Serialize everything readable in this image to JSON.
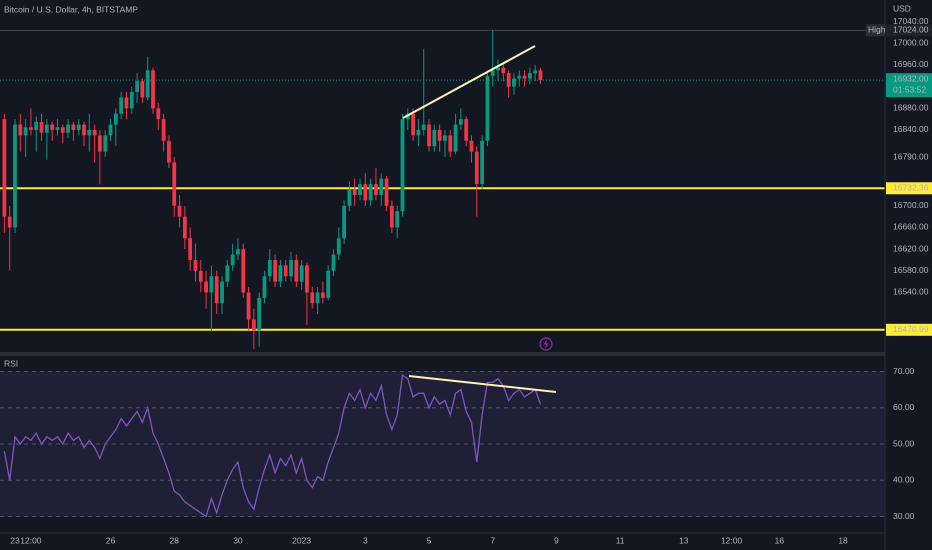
{
  "chart_data": {
    "type": "candlestick",
    "title": "Bitcoin / U.S. Dollar, 4h, BITSTAMP",
    "currency": "USD",
    "up_color": "#089981",
    "down_color": "#f23645",
    "grid": true,
    "xlim": [
      -11.3,
      655.6
    ],
    "xticks": [
      {
        "value": 0,
        "label": "23"
      },
      {
        "value": 12,
        "label": "12:00"
      },
      {
        "value": 72,
        "label": "26"
      },
      {
        "value": 120,
        "label": "28"
      },
      {
        "value": 168,
        "label": "30"
      },
      {
        "value": 216,
        "label": "2023"
      },
      {
        "value": 264,
        "label": "3"
      },
      {
        "value": 312,
        "label": "5"
      },
      {
        "value": 360,
        "label": "7"
      },
      {
        "value": 408,
        "label": "9"
      },
      {
        "value": 456,
        "label": "11"
      },
      {
        "value": 504,
        "label": "13"
      },
      {
        "value": 540,
        "label": "12:00"
      },
      {
        "value": 576,
        "label": "16"
      },
      {
        "value": 624,
        "label": "18"
      }
    ],
    "ylim": [
      16430,
      17080
    ],
    "yticks": [
      {
        "value": 17040,
        "label": "17040.00"
      },
      {
        "value": 17000,
        "label": "17000.00"
      },
      {
        "value": 16960,
        "label": "16960.00"
      },
      {
        "value": 16880,
        "label": "16880.00"
      },
      {
        "value": 16840,
        "label": "16840.00"
      },
      {
        "value": 16790,
        "label": "16790.00"
      },
      {
        "value": 16700,
        "label": "16700.00"
      },
      {
        "value": 16660,
        "label": "16660.00"
      },
      {
        "value": 16620,
        "label": "16620.00"
      },
      {
        "value": 16580,
        "label": "16580.00"
      },
      {
        "value": 16540,
        "label": "16540.00"
      }
    ],
    "high": {
      "name": "High",
      "value": 17024,
      "label": "17024.00"
    },
    "last": {
      "value": 16932,
      "label": "16932.00",
      "countdown": "01:53:52"
    },
    "levels": [
      {
        "value": 16732.36,
        "label": "16732.36",
        "color": "#ffeb3b"
      },
      {
        "value": 16470.99,
        "label": "16470.99",
        "color": "#ffeb3b"
      }
    ],
    "x": [
      -8,
      -4,
      0,
      4,
      8,
      12,
      16,
      20,
      24,
      28,
      32,
      36,
      40,
      44,
      48,
      52,
      56,
      60,
      64,
      68,
      72,
      76,
      80,
      84,
      88,
      92,
      96,
      100,
      104,
      108,
      112,
      116,
      120,
      124,
      128,
      132,
      136,
      140,
      144,
      148,
      152,
      156,
      160,
      164,
      168,
      172,
      176,
      180,
      184,
      188,
      192,
      196,
      200,
      204,
      208,
      212,
      216,
      220,
      224,
      228,
      232,
      236,
      240,
      244,
      248,
      252,
      256,
      260,
      264,
      268,
      272,
      276,
      280,
      284,
      288,
      292,
      296,
      300,
      304,
      308,
      312,
      316,
      320,
      324,
      328,
      332,
      336,
      340,
      344,
      348,
      352,
      356,
      360,
      364,
      368,
      372,
      376,
      380,
      384,
      388,
      392,
      396
    ],
    "candles": [
      [
        16860,
        16870,
        16650,
        16680
      ],
      [
        16680,
        16700,
        16580,
        16660
      ],
      [
        16660,
        16860,
        16650,
        16850
      ],
      [
        16850,
        16870,
        16800,
        16830
      ],
      [
        16830,
        16860,
        16790,
        16845
      ],
      [
        16845,
        16880,
        16830,
        16840
      ],
      [
        16840,
        16865,
        16800,
        16855
      ],
      [
        16855,
        16870,
        16820,
        16835
      ],
      [
        16835,
        16860,
        16785,
        16850
      ],
      [
        16850,
        16855,
        16820,
        16840
      ],
      [
        16840,
        16860,
        16830,
        16845
      ],
      [
        16845,
        16850,
        16815,
        16835
      ],
      [
        16835,
        16860,
        16825,
        16850
      ],
      [
        16850,
        16855,
        16820,
        16840
      ],
      [
        16840,
        16860,
        16830,
        16850
      ],
      [
        16850,
        16855,
        16810,
        16830
      ],
      [
        16830,
        16870,
        16800,
        16840
      ],
      [
        16840,
        16850,
        16780,
        16830
      ],
      [
        16830,
        16840,
        16740,
        16800
      ],
      [
        16800,
        16840,
        16790,
        16830
      ],
      [
        16830,
        16860,
        16820,
        16850
      ],
      [
        16850,
        16880,
        16810,
        16870
      ],
      [
        16870,
        16910,
        16860,
        16900
      ],
      [
        16900,
        16910,
        16860,
        16880
      ],
      [
        16880,
        16920,
        16870,
        16910
      ],
      [
        16910,
        16945,
        16890,
        16930
      ],
      [
        16930,
        16935,
        16890,
        16900
      ],
      [
        16900,
        16975,
        16895,
        16950
      ],
      [
        16950,
        16955,
        16870,
        16880
      ],
      [
        16880,
        16890,
        16840,
        16860
      ],
      [
        16860,
        16870,
        16800,
        16820
      ],
      [
        16820,
        16830,
        16770,
        16780
      ],
      [
        16780,
        16790,
        16680,
        16700
      ],
      [
        16700,
        16720,
        16660,
        16680
      ],
      [
        16680,
        16700,
        16620,
        16640
      ],
      [
        16640,
        16660,
        16580,
        16600
      ],
      [
        16600,
        16630,
        16560,
        16580
      ],
      [
        16580,
        16600,
        16540,
        16560
      ],
      [
        16560,
        16580,
        16510,
        16540
      ],
      [
        16540,
        16590,
        16470,
        16570
      ],
      [
        16570,
        16580,
        16500,
        16520
      ],
      [
        16520,
        16570,
        16500,
        16560
      ],
      [
        16560,
        16600,
        16550,
        16590
      ],
      [
        16590,
        16630,
        16580,
        16610
      ],
      [
        16610,
        16640,
        16600,
        16620
      ],
      [
        16620,
        16630,
        16530,
        16540
      ],
      [
        16540,
        16550,
        16470,
        16490
      ],
      [
        16490,
        16510,
        16435,
        16470
      ],
      [
        16470,
        16540,
        16440,
        16530
      ],
      [
        16530,
        16580,
        16520,
        16570
      ],
      [
        16570,
        16620,
        16560,
        16600
      ],
      [
        16600,
        16610,
        16550,
        16560
      ],
      [
        16560,
        16600,
        16550,
        16590
      ],
      [
        16590,
        16600,
        16560,
        16570
      ],
      [
        16570,
        16615,
        16560,
        16600
      ],
      [
        16600,
        16610,
        16550,
        16560
      ],
      [
        16560,
        16600,
        16545,
        16590
      ],
      [
        16590,
        16595,
        16480,
        16540
      ],
      [
        16540,
        16550,
        16510,
        16520
      ],
      [
        16520,
        16550,
        16500,
        16540
      ],
      [
        16540,
        16560,
        16520,
        16530
      ],
      [
        16530,
        16590,
        16525,
        16580
      ],
      [
        16580,
        16620,
        16570,
        16610
      ],
      [
        16610,
        16660,
        16600,
        16640
      ],
      [
        16640,
        16710,
        16630,
        16700
      ],
      [
        16700,
        16745,
        16690,
        16730
      ],
      [
        16730,
        16750,
        16700,
        16720
      ],
      [
        16720,
        16750,
        16710,
        16740
      ],
      [
        16740,
        16760,
        16700,
        16710
      ],
      [
        16710,
        16750,
        16700,
        16740
      ],
      [
        16740,
        16770,
        16710,
        16720
      ],
      [
        16720,
        16760,
        16700,
        16750
      ],
      [
        16750,
        16755,
        16690,
        16700
      ],
      [
        16700,
        16710,
        16650,
        16660
      ],
      [
        16660,
        16700,
        16640,
        16690
      ],
      [
        16690,
        16870,
        16680,
        16860
      ],
      [
        16860,
        16880,
        16840,
        16870
      ],
      [
        16870,
        16880,
        16820,
        16830
      ],
      [
        16830,
        16860,
        16810,
        16840
      ],
      [
        16840,
        16990,
        16830,
        16850
      ],
      [
        16850,
        16860,
        16800,
        16810
      ],
      [
        16810,
        16850,
        16800,
        16840
      ],
      [
        16840,
        16850,
        16800,
        16820
      ],
      [
        16820,
        16840,
        16790,
        16830
      ],
      [
        16830,
        16840,
        16790,
        16800
      ],
      [
        16800,
        16870,
        16795,
        16850
      ],
      [
        16850,
        16880,
        16840,
        16860
      ],
      [
        16860,
        16865,
        16810,
        16820
      ],
      [
        16820,
        16830,
        16780,
        16800
      ],
      [
        16800,
        16810,
        16680,
        16740
      ],
      [
        16740,
        16830,
        16730,
        16820
      ],
      [
        16820,
        16950,
        16810,
        16940
      ],
      [
        16940,
        17024,
        16920,
        16950
      ],
      [
        16950,
        16970,
        16930,
        16955
      ],
      [
        16955,
        16965,
        16930,
        16945
      ],
      [
        16945,
        16950,
        16900,
        16920
      ],
      [
        16920,
        16945,
        16905,
        16935
      ],
      [
        16935,
        16950,
        16920,
        16940
      ],
      [
        16940,
        16950,
        16920,
        16935
      ],
      [
        16935,
        16955,
        16925,
        16945
      ],
      [
        16945,
        16960,
        16930,
        16950
      ],
      [
        16950,
        16955,
        16925,
        16932
      ]
    ],
    "rsi": {
      "name": "RSI",
      "color": "#7e57c2",
      "ylim": [
        26,
        74
      ],
      "yticks": [
        {
          "value": 70,
          "label": "70.00"
        },
        {
          "value": 60,
          "label": "60.00"
        },
        {
          "value": 50,
          "label": "50.00"
        },
        {
          "value": 40,
          "label": "40.00"
        },
        {
          "value": 30,
          "label": "30.00"
        }
      ],
      "band": [
        30,
        70
      ],
      "values": [
        48,
        40,
        52,
        50,
        52,
        51,
        53,
        50,
        52,
        51,
        52,
        50,
        53,
        51,
        52,
        49,
        51,
        49,
        46,
        50,
        52,
        54,
        57,
        55,
        57,
        59,
        56,
        60,
        53,
        50,
        46,
        42,
        37,
        36,
        34,
        33,
        32,
        31,
        30,
        35,
        31,
        36,
        40,
        43,
        45,
        38,
        34,
        32,
        38,
        43,
        47,
        42,
        46,
        44,
        47,
        42,
        46,
        40,
        38,
        41,
        40,
        45,
        49,
        53,
        60,
        64,
        62,
        65,
        60,
        64,
        62,
        66,
        58,
        54,
        58,
        69,
        68,
        63,
        64,
        64,
        60,
        63,
        61,
        62,
        58,
        64,
        65,
        59,
        56,
        45,
        58,
        67,
        67,
        68,
        66,
        62,
        64,
        65,
        63,
        64,
        65,
        61
      ]
    }
  }
}
